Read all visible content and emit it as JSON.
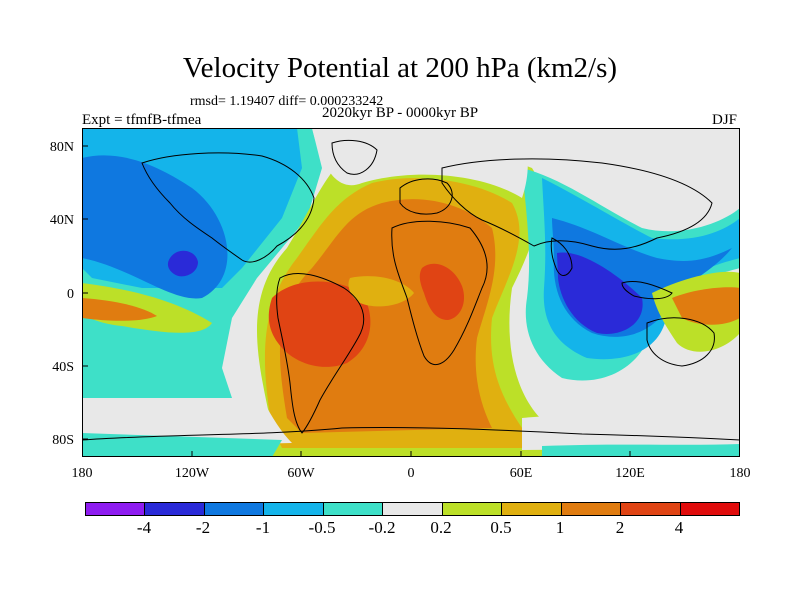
{
  "figure": {
    "title": "Velocity Potential at 200 hPa (km2/s)",
    "stats": "rmsd= 1.19407 diff= 0.000233242",
    "expt": "Expt = tfmfB-tfmea",
    "period": "2020kyr BP - 0000kyr BP",
    "season": "DJF"
  },
  "axes": {
    "lat_labels": [
      "80N",
      "40N",
      "0",
      "40S",
      "80S"
    ],
    "lon_labels": [
      "180",
      "120W",
      "60W",
      "0",
      "60E",
      "120E",
      "180"
    ]
  },
  "colorbar": {
    "colors": [
      "#8e1cf0",
      "#2a2ad8",
      "#0f78e0",
      "#14b4ea",
      "#3ee0c8",
      "#e8e8e8",
      "#bce028",
      "#e0b010",
      "#e07c10",
      "#e04414",
      "#e00c0c"
    ],
    "labels": [
      "-4",
      "-2",
      "-1",
      "-0.5",
      "-0.2",
      "0.2",
      "0.5",
      "1",
      "2",
      "4"
    ]
  },
  "map_fields": {
    "background_class": "-0.2 to 0.2 (gray)"
  }
}
